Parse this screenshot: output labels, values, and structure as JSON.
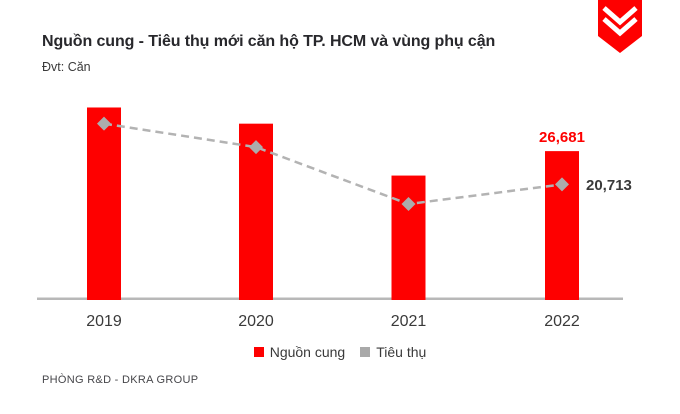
{
  "header": {
    "title": "Nguồn cung - Tiêu thụ mới căn hộ TP. HCM và vùng phụ cận",
    "unit_label": "Đvt: Căn"
  },
  "logo": {
    "name": "DKRA shield logo",
    "color": "#fe0000"
  },
  "chart_data": {
    "type": "bar",
    "subtype": "bar + dashed line combo",
    "title": "Nguồn cung - Tiêu thụ mới căn hộ TP. HCM và vùng phụ cận",
    "xlabel": "",
    "ylabel": "Căn (units)",
    "categories": [
      "2019",
      "2020",
      "2021",
      "2022"
    ],
    "series": [
      {
        "name": "Nguồn cung",
        "type": "bar",
        "color": "#fe0000",
        "label_color": "#fe0000",
        "values": [
          34500,
          31600,
          22300,
          26681
        ],
        "value_labels": [
          null,
          null,
          null,
          "26,681"
        ]
      },
      {
        "name": "Tiêu thụ",
        "type": "line",
        "line_style": "dashed",
        "marker": "diamond",
        "color": "#b3b3b3",
        "marker_color": "#acacac",
        "label_color": "#3a3a3a",
        "values": [
          31600,
          27400,
          17200,
          20713
        ],
        "value_labels": [
          null,
          null,
          null,
          "20,713"
        ]
      }
    ],
    "ylim": [
      0,
      36200
    ],
    "grid": false,
    "y_axis_visible": false,
    "legend_position": "bottom-center",
    "note_labels_shown": "only 2022 values are data-labeled"
  },
  "legend": {
    "items": [
      {
        "label": "Nguồn cung",
        "color": "#fe0000"
      },
      {
        "label": "Tiêu thụ",
        "color": "#a9a9a9"
      }
    ]
  },
  "footer": {
    "text": "PHÒNG R&D - DKRA GROUP"
  },
  "colors": {
    "bar_red": "#fe0000",
    "line_gray": "#b3b3b3",
    "marker_gray": "#acacac",
    "axis_gray": "#b8b8b8",
    "title_dark": "#28282c",
    "text_gray": "#3a3a3a"
  }
}
